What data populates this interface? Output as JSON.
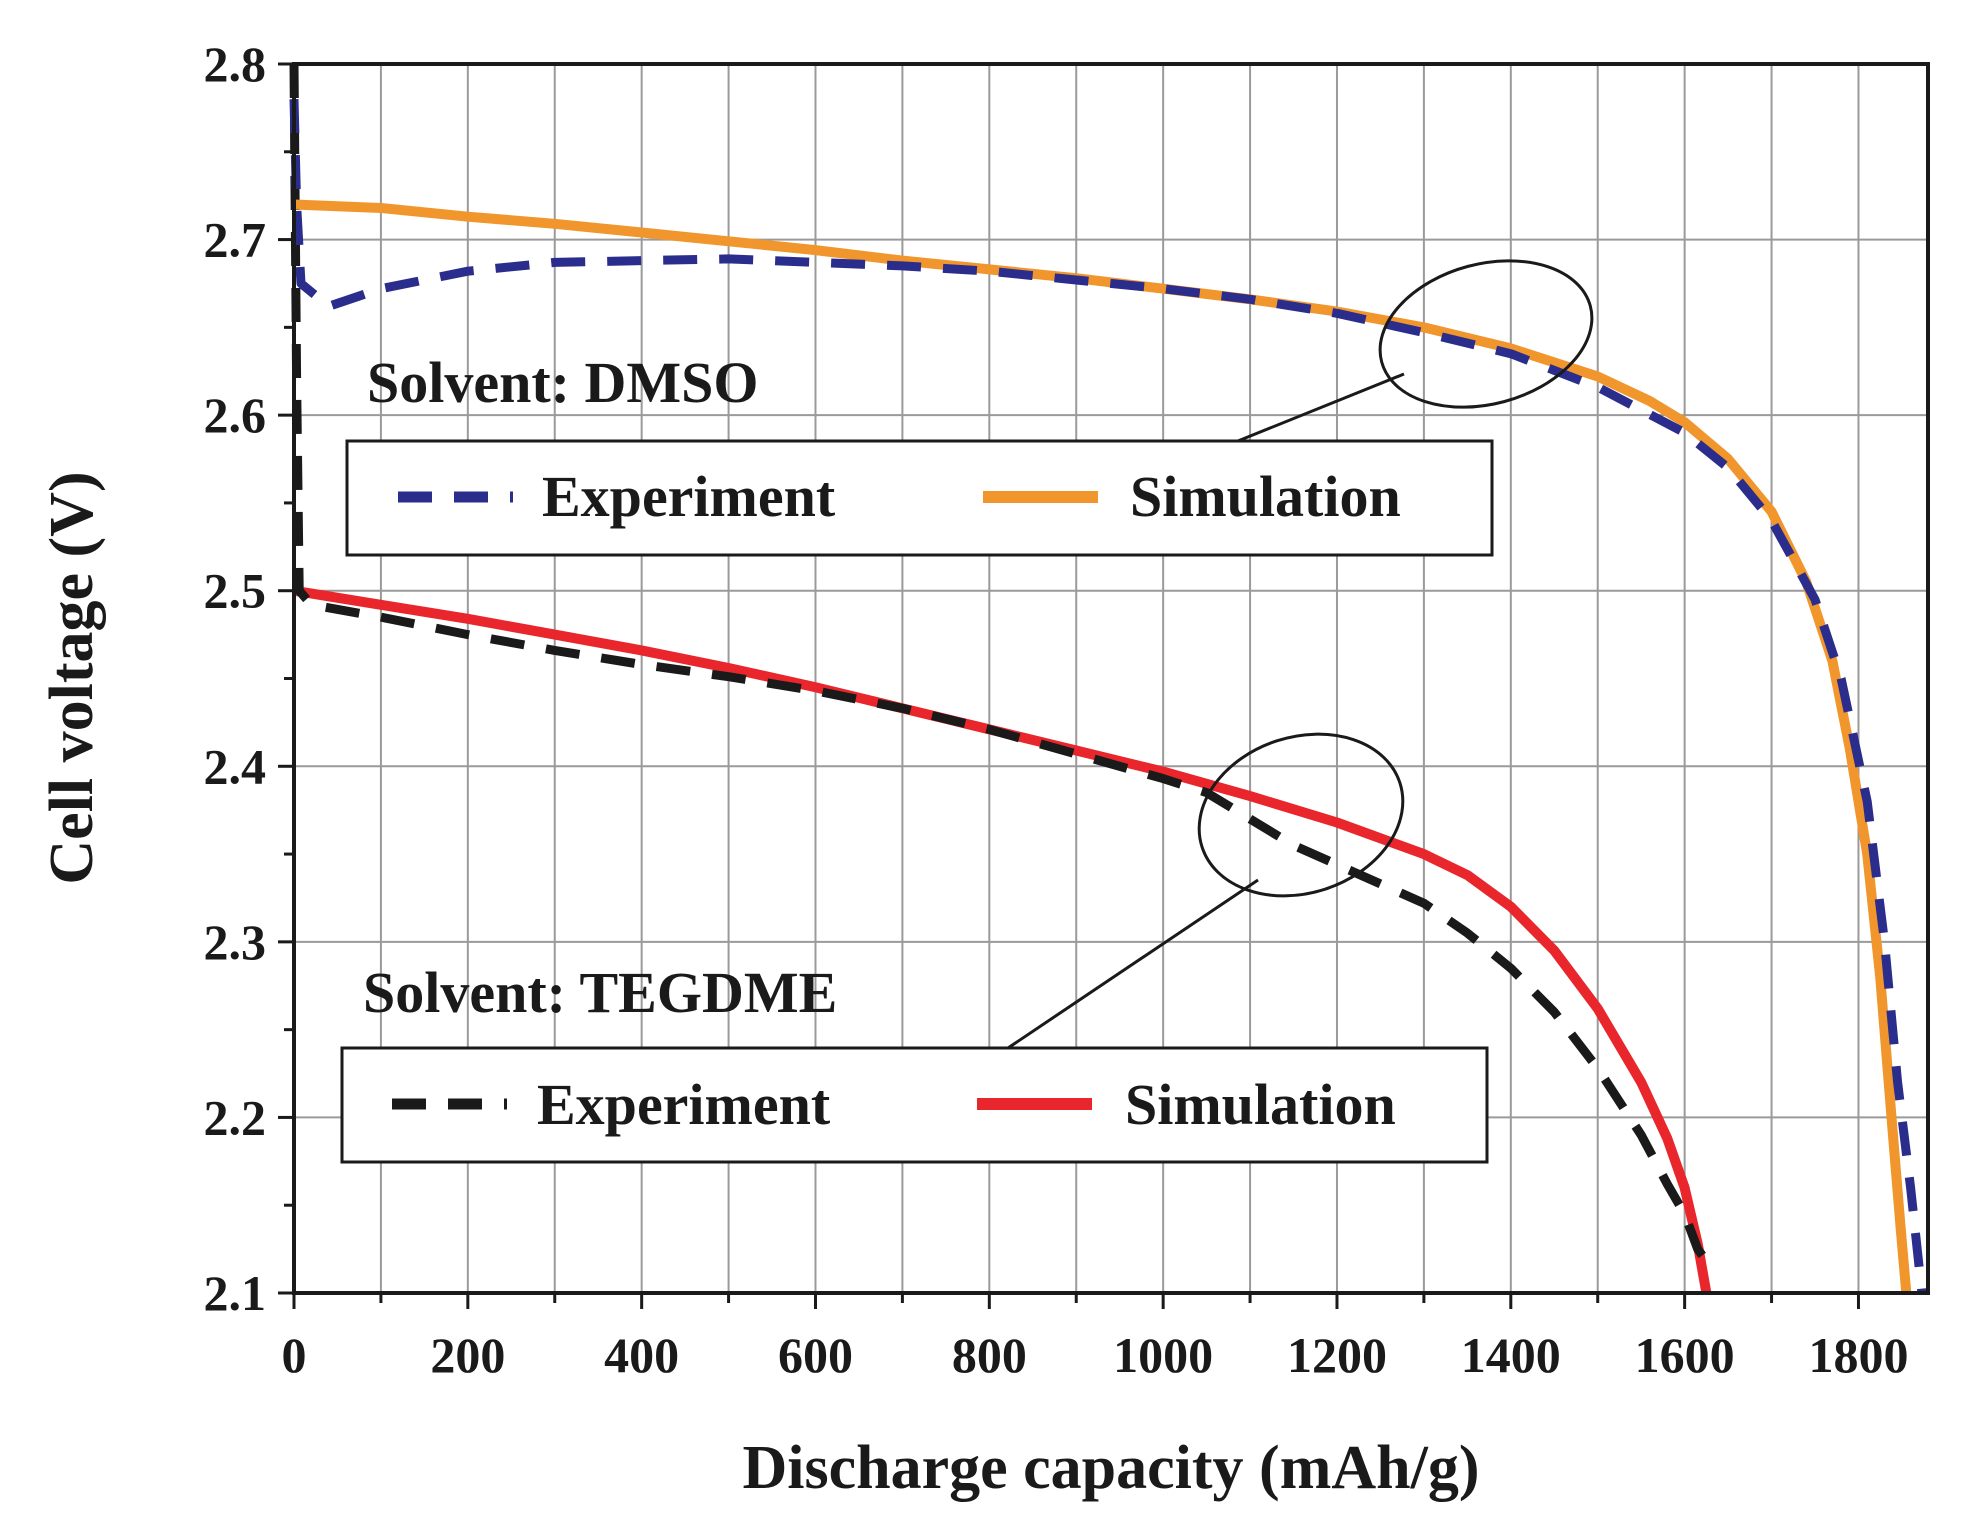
{
  "chart_data": {
    "type": "line",
    "title": "",
    "xlabel": "Discharge capacity (mAh/g)",
    "ylabel": "Cell voltage (V)",
    "xlim": [
      0,
      1880
    ],
    "ylim": [
      2.1,
      2.8
    ],
    "xticks": [
      0,
      200,
      400,
      600,
      800,
      1000,
      1200,
      1400,
      1600,
      1800
    ],
    "yticks": [
      2.1,
      2.2,
      2.3,
      2.4,
      2.5,
      2.6,
      2.7,
      2.8
    ],
    "xtick_labels": [
      "0",
      "200",
      "400",
      "600",
      "800",
      "1000",
      "1200",
      "1400",
      "1600",
      "1800"
    ],
    "ytick_labels": [
      "2.1",
      "2.2",
      "2.3",
      "2.4",
      "2.5",
      "2.6",
      "2.7",
      "2.8"
    ],
    "grid": true,
    "groups": [
      {
        "title": "Solvent: DMSO",
        "legend": [
          "Experiment",
          "Simulation"
        ],
        "series": [
          {
            "name": "Experiment",
            "style": "dashed",
            "color": "#2b2d8c",
            "points": [
              [
                0,
                2.78
              ],
              [
                3,
                2.72
              ],
              [
                8,
                2.675
              ],
              [
                40,
                2.662
              ],
              [
                100,
                2.672
              ],
              [
                200,
                2.682
              ],
              [
                300,
                2.687
              ],
              [
                400,
                2.688
              ],
              [
                500,
                2.689
              ],
              [
                600,
                2.687
              ],
              [
                700,
                2.685
              ],
              [
                800,
                2.682
              ],
              [
                900,
                2.677
              ],
              [
                1000,
                2.672
              ],
              [
                1100,
                2.666
              ],
              [
                1200,
                2.658
              ],
              [
                1300,
                2.647
              ],
              [
                1400,
                2.635
              ],
              [
                1500,
                2.616
              ],
              [
                1600,
                2.59
              ],
              [
                1650,
                2.57
              ],
              [
                1700,
                2.54
              ],
              [
                1750,
                2.495
              ],
              [
                1780,
                2.45
              ],
              [
                1810,
                2.38
              ],
              [
                1830,
                2.3
              ],
              [
                1845,
                2.22
              ],
              [
                1860,
                2.16
              ],
              [
                1873,
                2.1
              ]
            ]
          },
          {
            "name": "Simulation",
            "style": "solid",
            "color": "#f0962c",
            "points": [
              [
                0,
                2.72
              ],
              [
                100,
                2.718
              ],
              [
                200,
                2.713
              ],
              [
                300,
                2.709
              ],
              [
                400,
                2.704
              ],
              [
                500,
                2.699
              ],
              [
                600,
                2.694
              ],
              [
                700,
                2.688
              ],
              [
                800,
                2.683
              ],
              [
                900,
                2.678
              ],
              [
                1000,
                2.672
              ],
              [
                1100,
                2.666
              ],
              [
                1200,
                2.659
              ],
              [
                1300,
                2.65
              ],
              [
                1400,
                2.638
              ],
              [
                1500,
                2.622
              ],
              [
                1560,
                2.608
              ],
              [
                1600,
                2.596
              ],
              [
                1650,
                2.575
              ],
              [
                1700,
                2.545
              ],
              [
                1740,
                2.505
              ],
              [
                1770,
                2.46
              ],
              [
                1790,
                2.41
              ],
              [
                1810,
                2.35
              ],
              [
                1825,
                2.28
              ],
              [
                1838,
                2.2
              ],
              [
                1848,
                2.14
              ],
              [
                1855,
                2.1
              ]
            ]
          }
        ]
      },
      {
        "title": "Solvent: TEGDME",
        "legend": [
          "Experiment",
          "Simulation"
        ],
        "series": [
          {
            "name": "Experiment",
            "style": "dashed",
            "color": "#1a1a1a",
            "points": [
              [
                0,
                2.8
              ],
              [
                3,
                2.62
              ],
              [
                6,
                2.5
              ],
              [
                20,
                2.492
              ],
              [
                100,
                2.485
              ],
              [
                200,
                2.475
              ],
              [
                300,
                2.466
              ],
              [
                400,
                2.458
              ],
              [
                500,
                2.451
              ],
              [
                600,
                2.443
              ],
              [
                700,
                2.433
              ],
              [
                800,
                2.421
              ],
              [
                900,
                2.407
              ],
              [
                1000,
                2.393
              ],
              [
                1050,
                2.385
              ],
              [
                1100,
                2.37
              ],
              [
                1150,
                2.355
              ],
              [
                1200,
                2.344
              ],
              [
                1250,
                2.333
              ],
              [
                1300,
                2.322
              ],
              [
                1350,
                2.305
              ],
              [
                1400,
                2.285
              ],
              [
                1450,
                2.26
              ],
              [
                1500,
                2.228
              ],
              [
                1550,
                2.19
              ],
              [
                1580,
                2.162
              ],
              [
                1600,
                2.145
              ],
              [
                1615,
                2.125
              ],
              [
                1630,
                2.115
              ]
            ]
          },
          {
            "name": "Simulation",
            "style": "solid",
            "color": "#e8262c",
            "points": [
              [
                0,
                2.5
              ],
              [
                100,
                2.492
              ],
              [
                200,
                2.484
              ],
              [
                300,
                2.475
              ],
              [
                400,
                2.466
              ],
              [
                500,
                2.456
              ],
              [
                600,
                2.445
              ],
              [
                700,
                2.433
              ],
              [
                800,
                2.421
              ],
              [
                900,
                2.409
              ],
              [
                1000,
                2.397
              ],
              [
                1100,
                2.383
              ],
              [
                1200,
                2.368
              ],
              [
                1300,
                2.35
              ],
              [
                1350,
                2.338
              ],
              [
                1400,
                2.32
              ],
              [
                1450,
                2.295
              ],
              [
                1500,
                2.262
              ],
              [
                1550,
                2.22
              ],
              [
                1580,
                2.188
              ],
              [
                1600,
                2.16
              ],
              [
                1615,
                2.128
              ],
              [
                1625,
                2.1
              ]
            ]
          }
        ]
      }
    ]
  }
}
